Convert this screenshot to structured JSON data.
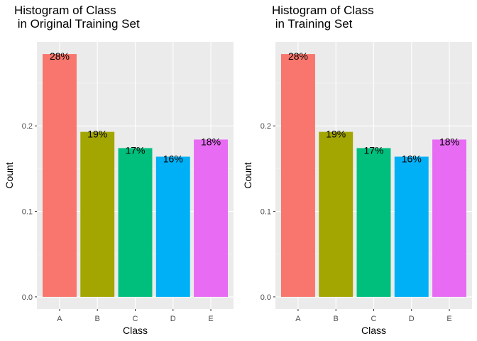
{
  "chart_data": [
    {
      "type": "bar",
      "title_lines": [
        "Histogram of Class",
        " in Original Training Set"
      ],
      "xlabel": "Class",
      "ylabel": "Count",
      "categories": [
        "A",
        "B",
        "C",
        "D",
        "E"
      ],
      "values": [
        0.284,
        0.193,
        0.174,
        0.164,
        0.184
      ],
      "labels": [
        "28%",
        "19%",
        "17%",
        "16%",
        "18%"
      ],
      "colors": [
        "#F8766D",
        "#A3A500",
        "#00BF7D",
        "#00B0F6",
        "#E76BF3"
      ],
      "yticks": [
        0.0,
        0.1,
        0.2
      ],
      "ytick_labels": [
        "0.0",
        "0.1",
        "0.2"
      ],
      "ylim": [
        -0.0142,
        0.2982
      ],
      "grid": true
    },
    {
      "type": "bar",
      "title_lines": [
        "Histogram of Class",
        " in Training Set"
      ],
      "xlabel": "Class",
      "ylabel": "Count",
      "categories": [
        "A",
        "B",
        "C",
        "D",
        "E"
      ],
      "values": [
        0.284,
        0.193,
        0.174,
        0.164,
        0.184
      ],
      "labels": [
        "28%",
        "19%",
        "17%",
        "16%",
        "18%"
      ],
      "colors": [
        "#F8766D",
        "#A3A500",
        "#00BF7D",
        "#00B0F6",
        "#E76BF3"
      ],
      "yticks": [
        0.0,
        0.1,
        0.2
      ],
      "ytick_labels": [
        "0.0",
        "0.1",
        "0.2"
      ],
      "ylim": [
        -0.0142,
        0.2982
      ],
      "grid": true
    }
  ]
}
